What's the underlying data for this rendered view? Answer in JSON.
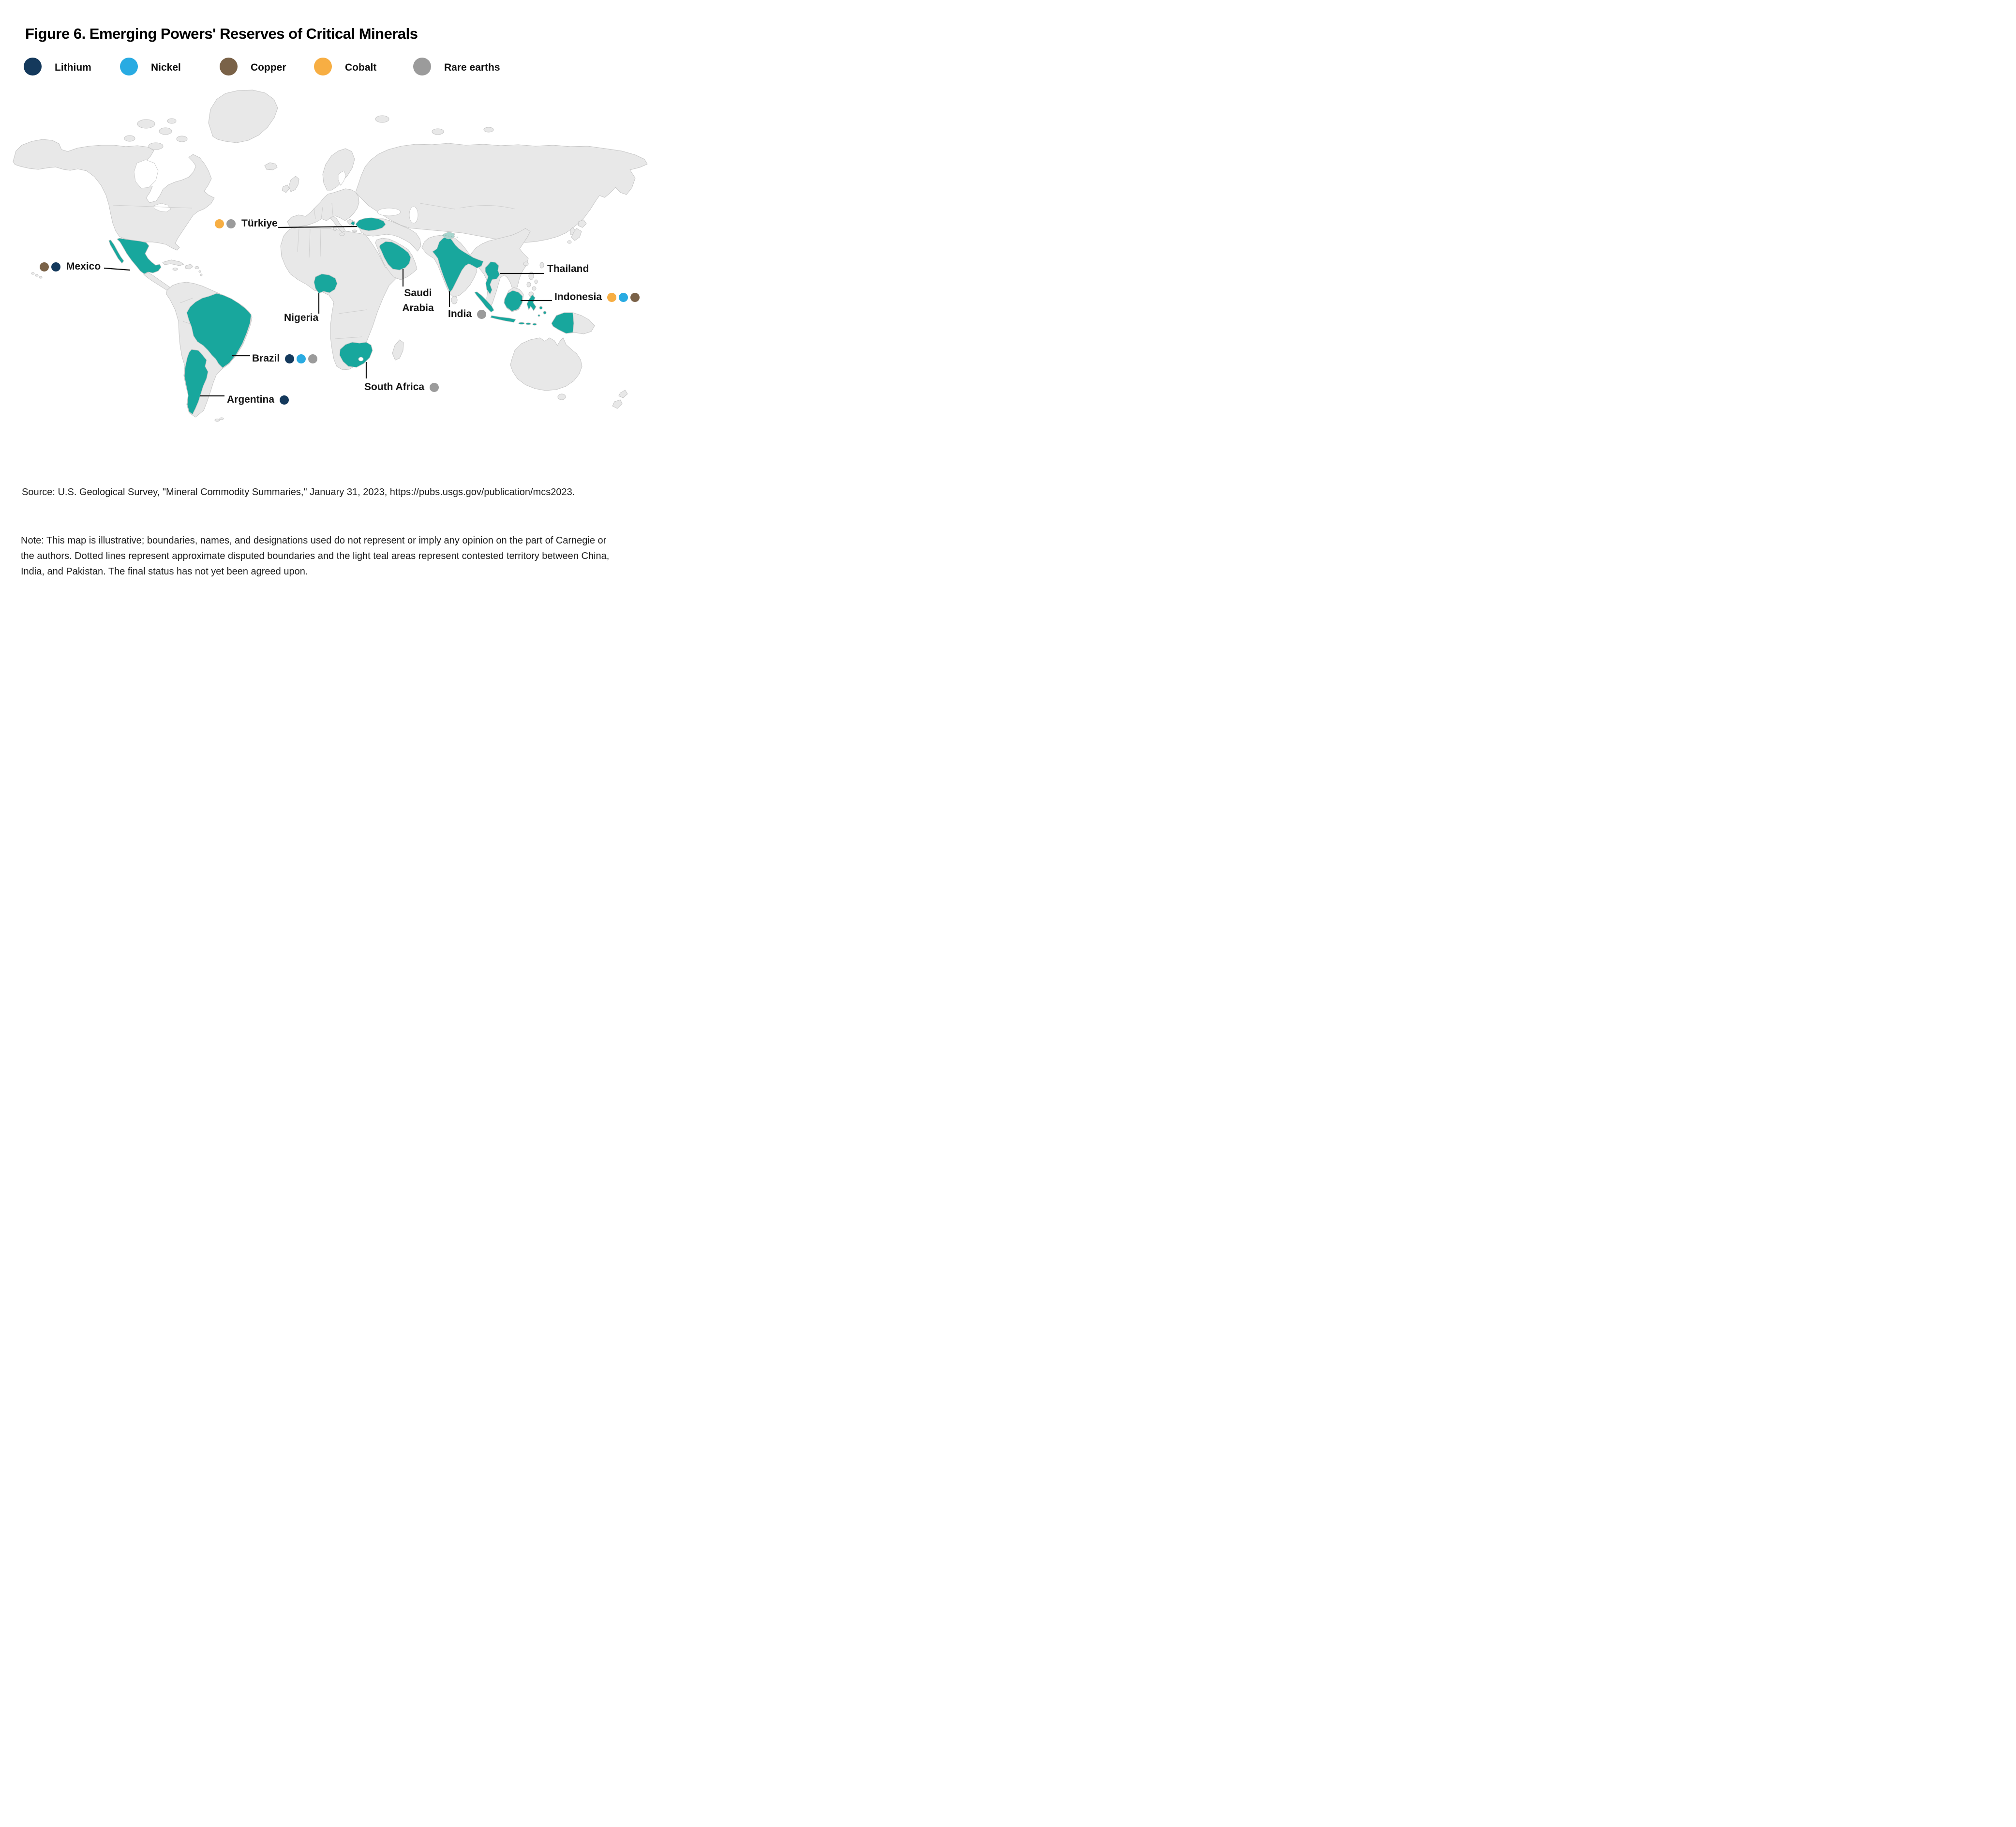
{
  "title": "Figure 6. Emerging Powers' Reserves of Critical Minerals",
  "colors": {
    "minerals": {
      "lithium": "#14395C",
      "nickel": "#29ABE2",
      "copper": "#7A6248",
      "cobalt": "#F7AE43",
      "rare_earths": "#9B9B9B"
    },
    "map": {
      "highlight": "#18A79D",
      "disputed": "#A7D5CE",
      "land": "#E8E8E8",
      "border": "#C6C6C6",
      "ocean": "#FFFFFF",
      "leader_line": "#111111"
    }
  },
  "legend": {
    "items": [
      {
        "label": "Lithium",
        "minerals": [
          "lithium"
        ]
      },
      {
        "label": "Nickel",
        "minerals": [
          "nickel"
        ]
      },
      {
        "label": "Copper",
        "minerals": [
          "copper"
        ]
      },
      {
        "label": "Cobalt",
        "minerals": [
          "cobalt"
        ]
      },
      {
        "label": "Rare earths",
        "minerals": [
          "rare_earths"
        ]
      }
    ]
  },
  "map_labels": {
    "turkiye": {
      "text": "Türkiye",
      "minerals": [
        "cobalt",
        "rare_earths"
      ]
    },
    "mexico": {
      "text": "Mexico",
      "minerals": [
        "copper",
        "lithium"
      ]
    },
    "brazil": {
      "text": "Brazil",
      "minerals": [
        "lithium",
        "nickel",
        "rare_earths"
      ]
    },
    "argentina": {
      "text": "Argentina",
      "minerals": [
        "lithium"
      ]
    },
    "nigeria": {
      "text": "Nigeria",
      "minerals": []
    },
    "saudi_arabia": {
      "text": "Saudi Arabia",
      "line1": "Saudi",
      "line2": "Arabia",
      "minerals": []
    },
    "india": {
      "text": "India",
      "minerals": [
        "rare_earths"
      ]
    },
    "thailand": {
      "text": "Thailand",
      "minerals": []
    },
    "indonesia": {
      "text": "Indonesia",
      "minerals": [
        "cobalt",
        "nickel",
        "copper"
      ]
    },
    "south_africa": {
      "text": "South Africa",
      "minerals": [
        "rare_earths"
      ]
    }
  },
  "highlighted_countries": [
    "Mexico",
    "Brazil",
    "Argentina",
    "Nigeria",
    "South Africa",
    "Saudi Arabia",
    "Türkiye",
    "India",
    "Thailand",
    "Indonesia"
  ],
  "source": "Source: U.S. Geological Survey, \"Mineral Commodity Summaries,\" January 31, 2023, https://pubs.usgs.gov/publication/mcs2023.",
  "note": "Note: This map is illustrative; boundaries, names, and designations used do not represent or imply any opinion on the part of Carnegie or the authors. Dotted lines represent approximate disputed boundaries and the light teal areas represent contested territory between China, India, and Pakistan. The final status has not yet been agreed upon."
}
